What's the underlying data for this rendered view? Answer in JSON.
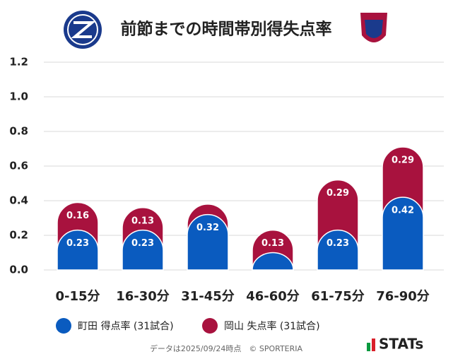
{
  "chart_data": {
    "type": "bar",
    "title": "前節までの時間帯別得失点率",
    "categories": [
      "0-15分",
      "16-30分",
      "31-45分",
      "46-60分",
      "61-75分",
      "76-90分"
    ],
    "series": [
      {
        "name": "町田 得点率 (31試合)",
        "color": "#0a5bbf",
        "values": [
          0.23,
          0.23,
          0.32,
          0.1,
          0.23,
          0.42
        ],
        "value_labels": [
          "0.23",
          "0.23",
          "0.32",
          null,
          "0.23",
          "0.42"
        ]
      },
      {
        "name": "岡山 失点率 (31試合)",
        "color": "#a8123e",
        "values": [
          0.16,
          0.13,
          0.06,
          0.13,
          0.29,
          0.29
        ],
        "value_labels": [
          "0.16",
          "0.13",
          null,
          "0.13",
          "0.29",
          "0.29"
        ]
      }
    ],
    "stacked": true,
    "ylim": [
      0,
      1.2
    ],
    "yticks": [
      {
        "value": 0,
        "label": "0.0"
      },
      0.2,
      0.4,
      0.6,
      0.8,
      {
        "value": 1,
        "label": "1.0"
      },
      1.2
    ],
    "grid": true,
    "footer": "データは2025/09/24時点　© SPORTERIA",
    "brand": "STATs"
  }
}
